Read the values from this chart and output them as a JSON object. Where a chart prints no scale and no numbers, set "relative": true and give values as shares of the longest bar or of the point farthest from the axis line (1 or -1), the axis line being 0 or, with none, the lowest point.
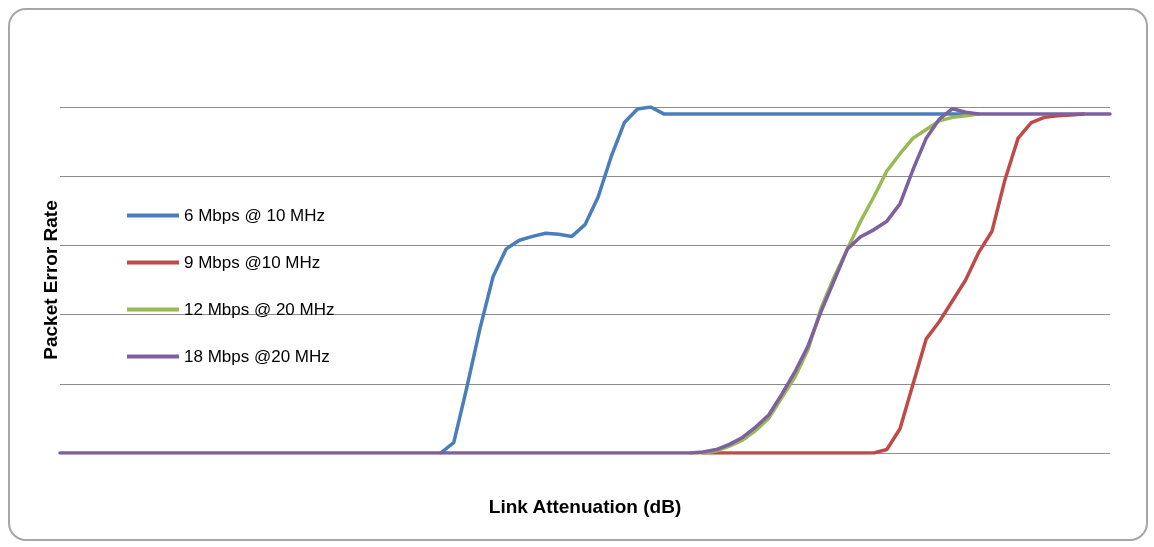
{
  "chart_data": {
    "type": "line",
    "relative": true,
    "xlabel": "Link Attenuation (dB)",
    "ylabel": "Packet Error Rate",
    "grid": "y",
    "legend": "left",
    "marker": "none",
    "line_style": "solid",
    "categories": [
      null,
      null,
      null,
      null,
      null,
      null,
      null,
      null,
      null,
      null,
      null,
      null,
      null,
      null,
      null,
      null,
      null,
      null,
      null,
      null,
      null,
      null,
      null,
      null,
      null,
      null,
      null,
      null,
      null,
      null,
      null,
      null,
      null,
      null,
      null,
      null,
      null,
      null,
      null,
      null,
      null,
      null,
      null,
      null,
      null,
      null,
      null,
      null,
      null,
      null,
      null,
      null,
      null,
      null,
      null,
      null,
      null,
      null,
      null,
      null,
      null,
      null,
      null,
      null,
      null,
      null,
      null,
      null,
      null,
      null,
      null,
      null,
      null,
      null,
      null,
      null,
      null,
      null,
      null,
      null,
      null
    ],
    "series": [
      {
        "name": "6 Mbps @ 10 MHz",
        "color": "#4a7ebb",
        "values": [
          null,
          null,
          null,
          null,
          null,
          null,
          null,
          null,
          null,
          null,
          null,
          null,
          null,
          null,
          null,
          null,
          null,
          null,
          null,
          null,
          null,
          null,
          null,
          null,
          null,
          null,
          null,
          null,
          null,
          0,
          0.03,
          0.19,
          0.36,
          0.51,
          0.59,
          0.615,
          0.626,
          0.635,
          0.632,
          0.626,
          0.66,
          0.74,
          0.857,
          0.955,
          0.994,
          1,
          0.98,
          0.98,
          0.98,
          0.98,
          0.98,
          0.98,
          0.98,
          0.98,
          0.98,
          0.98,
          0.98,
          0.98,
          0.98,
          0.98,
          0.98,
          0.98,
          0.98,
          0.98,
          0.98,
          0.98,
          0.98,
          0.98,
          0.98,
          0.98,
          null,
          null,
          null,
          null,
          null,
          null,
          null,
          null,
          null,
          null,
          null
        ]
      },
      {
        "name": "9 Mbps @10 MHz",
        "color": "#be4b48",
        "values": [
          null,
          null,
          null,
          null,
          null,
          null,
          null,
          null,
          null,
          null,
          null,
          null,
          null,
          null,
          null,
          null,
          null,
          null,
          null,
          null,
          null,
          null,
          null,
          null,
          null,
          null,
          null,
          null,
          null,
          null,
          null,
          null,
          null,
          null,
          null,
          null,
          null,
          null,
          null,
          null,
          null,
          null,
          null,
          null,
          null,
          null,
          null,
          null,
          null,
          0,
          0,
          0,
          0,
          0,
          0,
          0,
          0,
          0,
          0,
          0,
          0,
          0,
          0,
          0.01,
          0.07,
          0.2,
          0.33,
          0.38,
          0.44,
          0.5,
          0.58,
          0.64,
          0.79,
          0.91,
          0.955,
          0.97,
          0.975,
          0.977,
          0.98,
          null,
          null
        ]
      },
      {
        "name": "12 Mbps @ 20 MHz",
        "color": "#98b954",
        "values": [
          null,
          null,
          null,
          null,
          null,
          null,
          null,
          null,
          null,
          null,
          null,
          null,
          null,
          null,
          null,
          null,
          null,
          null,
          null,
          null,
          null,
          null,
          null,
          null,
          null,
          null,
          null,
          null,
          null,
          null,
          null,
          null,
          null,
          null,
          null,
          null,
          null,
          null,
          null,
          null,
          null,
          null,
          null,
          null,
          null,
          null,
          null,
          null,
          0,
          0,
          0.006,
          0.02,
          0.037,
          0.065,
          0.1,
          0.16,
          0.22,
          0.3,
          0.42,
          0.51,
          0.59,
          0.67,
          0.74,
          0.815,
          0.865,
          0.91,
          0.935,
          0.96,
          0.97,
          0.975,
          0.98,
          null,
          null,
          null,
          null,
          null,
          null,
          null,
          null,
          null,
          null
        ]
      },
      {
        "name": "18 Mbps @20 MHz",
        "color": "#7d60a0",
        "values": [
          0,
          0,
          0,
          0,
          0,
          0,
          0,
          0,
          0,
          0,
          0,
          0,
          0,
          0,
          0,
          0,
          0,
          0,
          0,
          0,
          0,
          0,
          0,
          0,
          0,
          0,
          0,
          0,
          0,
          0,
          0,
          0,
          0,
          0,
          0,
          0,
          0,
          0,
          0,
          0,
          0,
          0,
          0,
          0,
          0,
          0,
          0,
          0,
          0,
          0.003,
          0.01,
          0.025,
          0.045,
          0.075,
          0.11,
          0.17,
          0.235,
          0.31,
          0.41,
          0.5,
          0.59,
          0.625,
          0.645,
          0.67,
          0.72,
          0.82,
          0.91,
          0.965,
          0.995,
          0.985,
          0.98,
          0.98,
          0.98,
          0.98,
          0.98,
          0.98,
          0.98,
          0.98,
          0.98,
          0.98,
          0.98
        ]
      }
    ]
  }
}
